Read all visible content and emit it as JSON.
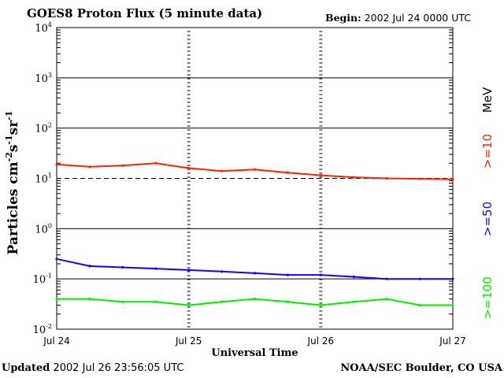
{
  "header": {
    "title": "GOES8 Proton Flux (5 minute data)",
    "begin_label": "Begin:",
    "begin_value": "2002 Jul 24 0000 UTC"
  },
  "footer": {
    "updated_label": "Updated",
    "updated_value": "2002 Jul 26 23:56:05 UTC",
    "credit": "NOAA/SEC Boulder, CO USA"
  },
  "chart_data": {
    "type": "line",
    "title": "GOES8 Proton Flux (5 minute data)",
    "xlabel": "Universal Time",
    "ylabel": "Particles cm-2s-1sr-1",
    "ylabel_parts": [
      "Particles cm",
      "-2",
      "s",
      "-1",
      "sr",
      "-1"
    ],
    "y_scale": "log",
    "ylim": [
      0.01,
      10000
    ],
    "y_ticks": [
      {
        "value": 0.01,
        "base": "10",
        "exp": "-2"
      },
      {
        "value": 0.1,
        "base": "10",
        "exp": "-1"
      },
      {
        "value": 1,
        "base": "10",
        "exp": "0"
      },
      {
        "value": 10,
        "base": "10",
        "exp": "1"
      },
      {
        "value": 100,
        "base": "10",
        "exp": "2"
      },
      {
        "value": 1000,
        "base": "10",
        "exp": "3"
      },
      {
        "value": 10000,
        "base": "10",
        "exp": "4"
      }
    ],
    "xlim": [
      "2002-07-24",
      "2002-07-27"
    ],
    "x_tick_labels": [
      "Jul 24",
      "Jul 25",
      "Jul 26",
      "Jul 27"
    ],
    "x_ticks": [
      "2002-07-24",
      "2002-07-25",
      "2002-07-26",
      "2002-07-27"
    ],
    "grid": true,
    "dashed_reference_value": 10,
    "energy_unit": "MeV",
    "series": [
      {
        "name": ">=10",
        "color": "#ff2200",
        "x": [
          "2002-07-24 00:00",
          "2002-07-24 06:00",
          "2002-07-24 12:00",
          "2002-07-24 18:00",
          "2002-07-25 00:00",
          "2002-07-25 06:00",
          "2002-07-25 12:00",
          "2002-07-25 18:00",
          "2002-07-26 00:00",
          "2002-07-26 06:00",
          "2002-07-26 12:00",
          "2002-07-26 18:00",
          "2002-07-27 00:00"
        ],
        "values": [
          19,
          17,
          18,
          20,
          16,
          14,
          15,
          13,
          11.5,
          10.5,
          10,
          9.8,
          9.6
        ]
      },
      {
        "name": ">=50",
        "color": "#1400ff",
        "x": [
          "2002-07-24 00:00",
          "2002-07-24 06:00",
          "2002-07-24 12:00",
          "2002-07-24 18:00",
          "2002-07-25 00:00",
          "2002-07-25 06:00",
          "2002-07-25 12:00",
          "2002-07-25 18:00",
          "2002-07-26 00:00",
          "2002-07-26 06:00",
          "2002-07-26 12:00",
          "2002-07-26 18:00",
          "2002-07-27 00:00"
        ],
        "values": [
          0.25,
          0.18,
          0.17,
          0.16,
          0.15,
          0.14,
          0.13,
          0.12,
          0.12,
          0.11,
          0.1,
          0.1,
          0.1
        ]
      },
      {
        "name": ">=100",
        "color": "#00ee00",
        "x": [
          "2002-07-24 00:00",
          "2002-07-24 06:00",
          "2002-07-24 12:00",
          "2002-07-24 18:00",
          "2002-07-25 00:00",
          "2002-07-25 06:00",
          "2002-07-25 12:00",
          "2002-07-25 18:00",
          "2002-07-26 00:00",
          "2002-07-26 06:00",
          "2002-07-26 12:00",
          "2002-07-26 18:00",
          "2002-07-27 00:00"
        ],
        "values": [
          0.04,
          0.04,
          0.035,
          0.035,
          0.03,
          0.035,
          0.04,
          0.035,
          0.03,
          0.035,
          0.04,
          0.03,
          0.03
        ]
      }
    ]
  }
}
